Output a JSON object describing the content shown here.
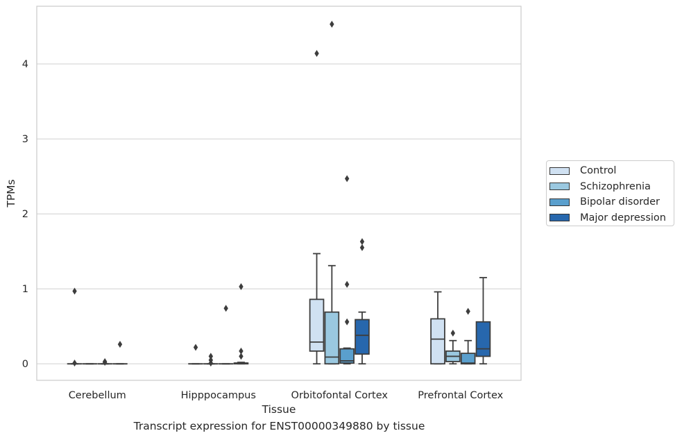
{
  "caption": "Transcript expression for ENST00000349880 by tissue",
  "chart_data": {
    "type": "boxplot",
    "title": "",
    "xlabel": "Tissue",
    "ylabel": "TPMs",
    "categories": [
      "Cerebellum",
      "Hipppocampus",
      "Orbitofontal Cortex",
      "Prefrontal Cortex"
    ],
    "ylim": [
      -0.22,
      4.77
    ],
    "yticks": [
      0,
      1,
      2,
      3,
      4
    ],
    "grid": "horizontal",
    "legend_position": "right",
    "series": [
      {
        "name": "Control",
        "color": "#d0e1f2",
        "boxes": [
          {
            "whislo": 0,
            "q1": 0,
            "med": 0,
            "q3": 0,
            "whishi": 0,
            "fliers": [
              0.97,
              0.01
            ]
          },
          {
            "whislo": 0,
            "q1": 0,
            "med": 0,
            "q3": 0,
            "whishi": 0,
            "fliers": [
              0.22
            ]
          },
          {
            "whislo": 0,
            "q1": 0.17,
            "med": 0.29,
            "q3": 0.86,
            "whishi": 1.47,
            "fliers": [
              4.14
            ]
          },
          {
            "whislo": 0,
            "q1": 0,
            "med": 0.33,
            "q3": 0.6,
            "whishi": 0.96,
            "fliers": []
          }
        ]
      },
      {
        "name": "Schizophrenia",
        "color": "#9ac8e0",
        "boxes": [
          {
            "whislo": 0,
            "q1": 0,
            "med": 0,
            "q3": 0,
            "whishi": 0,
            "fliers": []
          },
          {
            "whislo": 0,
            "q1": 0,
            "med": 0,
            "q3": 0,
            "whishi": 0,
            "fliers": [
              0.1,
              0.05,
              0.01
            ]
          },
          {
            "whislo": 0,
            "q1": 0,
            "med": 0.09,
            "q3": 0.69,
            "whishi": 1.31,
            "fliers": [
              4.53
            ]
          },
          {
            "whislo": 0,
            "q1": 0.03,
            "med": 0.1,
            "q3": 0.17,
            "whishi": 0.31,
            "fliers": [
              0.41
            ]
          }
        ]
      },
      {
        "name": "Bipolar disorder",
        "color": "#5a9fcd",
        "boxes": [
          {
            "whislo": 0,
            "q1": 0,
            "med": 0,
            "q3": 0,
            "whishi": 0,
            "fliers": [
              0.03,
              0.02
            ]
          },
          {
            "whislo": 0,
            "q1": 0,
            "med": 0,
            "q3": 0,
            "whishi": 0,
            "fliers": [
              0.74
            ]
          },
          {
            "whislo": 0,
            "q1": 0.01,
            "med": 0.04,
            "q3": 0.2,
            "whishi": 0.21,
            "fliers": [
              2.47,
              1.06,
              0.56
            ]
          },
          {
            "whislo": 0,
            "q1": 0,
            "med": 0.01,
            "q3": 0.14,
            "whishi": 0.31,
            "fliers": [
              0.7
            ]
          }
        ]
      },
      {
        "name": "Major depression",
        "color": "#2767ad",
        "boxes": [
          {
            "whislo": 0,
            "q1": 0,
            "med": 0,
            "q3": 0,
            "whishi": 0,
            "fliers": [
              0.26
            ]
          },
          {
            "whislo": 0,
            "q1": 0,
            "med": 0.01,
            "q3": 0.01,
            "whishi": 0.02,
            "fliers": [
              1.03,
              0.17,
              0.1
            ]
          },
          {
            "whislo": 0,
            "q1": 0.13,
            "med": 0.38,
            "q3": 0.59,
            "whishi": 0.69,
            "fliers": [
              1.63,
              1.55
            ]
          },
          {
            "whislo": 0,
            "q1": 0.1,
            "med": 0.2,
            "q3": 0.56,
            "whishi": 1.15,
            "fliers": []
          }
        ]
      }
    ]
  }
}
